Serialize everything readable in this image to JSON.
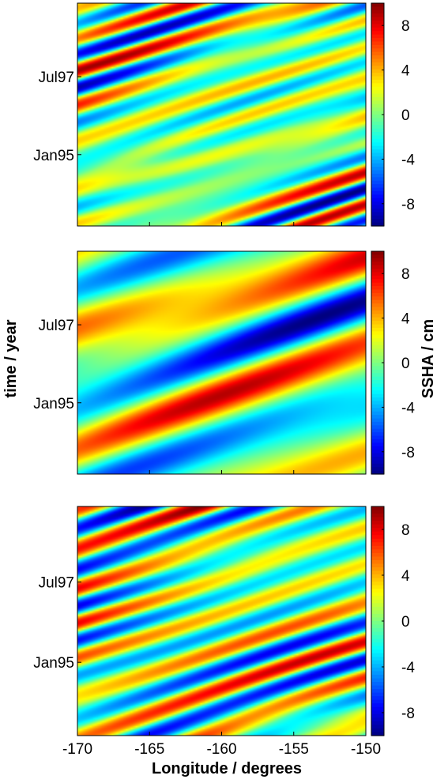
{
  "figure": {
    "ylabel": "time / year",
    "xlabel": "Longitude / degrees",
    "colorbar_label": "SSHA / cm"
  },
  "chart_data": [
    {
      "type": "heatmap",
      "panel": "top",
      "xlim": [
        -170,
        -150
      ],
      "y_ticks": [
        "Jul97",
        "Jan95"
      ],
      "x_ticks": [],
      "colormap": "jet",
      "clim": [
        -10,
        10
      ],
      "colorbar_ticks": [
        "8",
        "4",
        "0",
        "-4",
        "-8"
      ],
      "colorbar_label": "",
      "pattern": "high-frequency westward-propagating diagonal bands (period ~4 months)",
      "seed": 11
    },
    {
      "type": "heatmap",
      "panel": "middle",
      "xlim": [
        -170,
        -150
      ],
      "y_ticks": [
        "Jul97",
        "Jan95"
      ],
      "x_ticks": [],
      "colormap": "jet",
      "clim": [
        -10,
        10
      ],
      "colorbar_ticks": [
        "8",
        "4",
        "0",
        "-4",
        "-8"
      ],
      "colorbar_label": "SSHA / cm",
      "ylabel": "time / year",
      "pattern": "smooth low-frequency westward-propagating diagonal bands",
      "seed": 23
    },
    {
      "type": "heatmap",
      "panel": "bottom",
      "xlim": [
        -170,
        -150
      ],
      "y_ticks": [
        "Jul97",
        "Jan95"
      ],
      "x_ticks": [
        "-170",
        "-165",
        "-160",
        "-155",
        "-150"
      ],
      "colormap": "jet",
      "clim": [
        -10,
        10
      ],
      "colorbar_ticks": [
        "8",
        "4",
        "0",
        "-4",
        "-8"
      ],
      "colorbar_label": "",
      "xlabel": "Longitude / degrees",
      "pattern": "high-frequency westward-propagating diagonal bands (period ~4 months)",
      "seed": 37
    }
  ]
}
